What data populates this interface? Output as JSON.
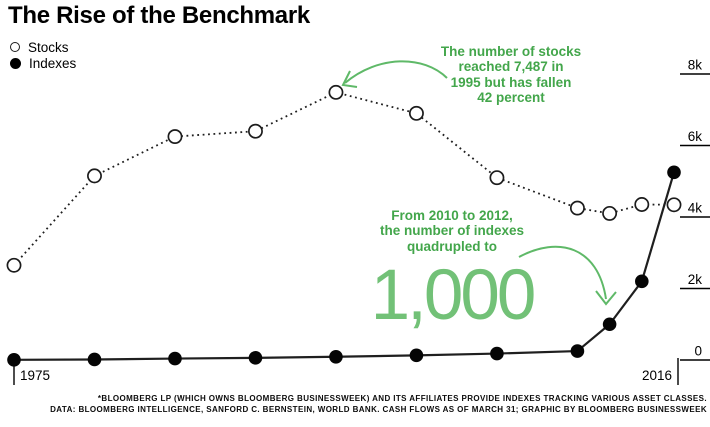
{
  "title": "The Rise of the Benchmark",
  "legend": {
    "items": [
      {
        "label": "Stocks",
        "marker": "open-circle"
      },
      {
        "label": "Indexes",
        "marker": "filled-circle"
      }
    ]
  },
  "annotations": {
    "stocks_note": {
      "lines": [
        "The number of stocks",
        "reached 7,487 in",
        "1995 but has fallen",
        "42 percent"
      ]
    },
    "indexes_note": {
      "lines": [
        "From 2010 to 2012,",
        "the number of indexes",
        "quadrupled to"
      ],
      "big_number": "1,000"
    }
  },
  "footnote": {
    "lines": [
      "*BLOOMBERG LP (WHICH OWNS BLOOMBERG BUSINESSWEEK) AND ITS AFFILIATES PROVIDE INDEXES TRACKING VARIOUS ASSET CLASSES.",
      "DATA: BLOOMBERG INTELLIGENCE, SANFORD C. BERNSTEIN, WORLD BANK. CASH FLOWS AS OF MARCH 31; GRAPHIC BY BLOOMBERG BUSINESSWEEK"
    ]
  },
  "colors": {
    "annotation_green": "#43a64b",
    "big_number_green": "#72c177",
    "arrow_green": "#5fb968",
    "line_black": "#1f1f1f"
  },
  "chart_data": {
    "type": "line",
    "title": "The Rise of the Benchmark",
    "x": [
      1975,
      1980,
      1985,
      1990,
      1995,
      2000,
      2005,
      2010,
      2012,
      2014,
      2016
    ],
    "series": [
      {
        "name": "Stocks",
        "marker": "open-circle",
        "line_style": "dotted",
        "values": [
          2650,
          5150,
          6250,
          6400,
          7487,
          6900,
          5100,
          4250,
          4100,
          4350,
          4342
        ]
      },
      {
        "name": "Indexes",
        "marker": "filled-circle",
        "line_style": "solid",
        "values": [
          5,
          15,
          40,
          60,
          90,
          130,
          180,
          250,
          1000,
          2200,
          5250
        ]
      }
    ],
    "xlim": [
      1975,
      2016
    ],
    "ylim": [
      0,
      8000
    ],
    "y_ticks": [
      {
        "label": "8k",
        "value": 8000
      },
      {
        "label": "6k",
        "value": 6000
      },
      {
        "label": "4k",
        "value": 4000
      },
      {
        "label": "2k",
        "value": 2000
      },
      {
        "label": "0",
        "value": 0
      }
    ],
    "x_axis_labels": {
      "start": "1975",
      "end": "2016"
    },
    "grid": false,
    "legend_position": "top-left",
    "xlabel": "",
    "ylabel": ""
  }
}
